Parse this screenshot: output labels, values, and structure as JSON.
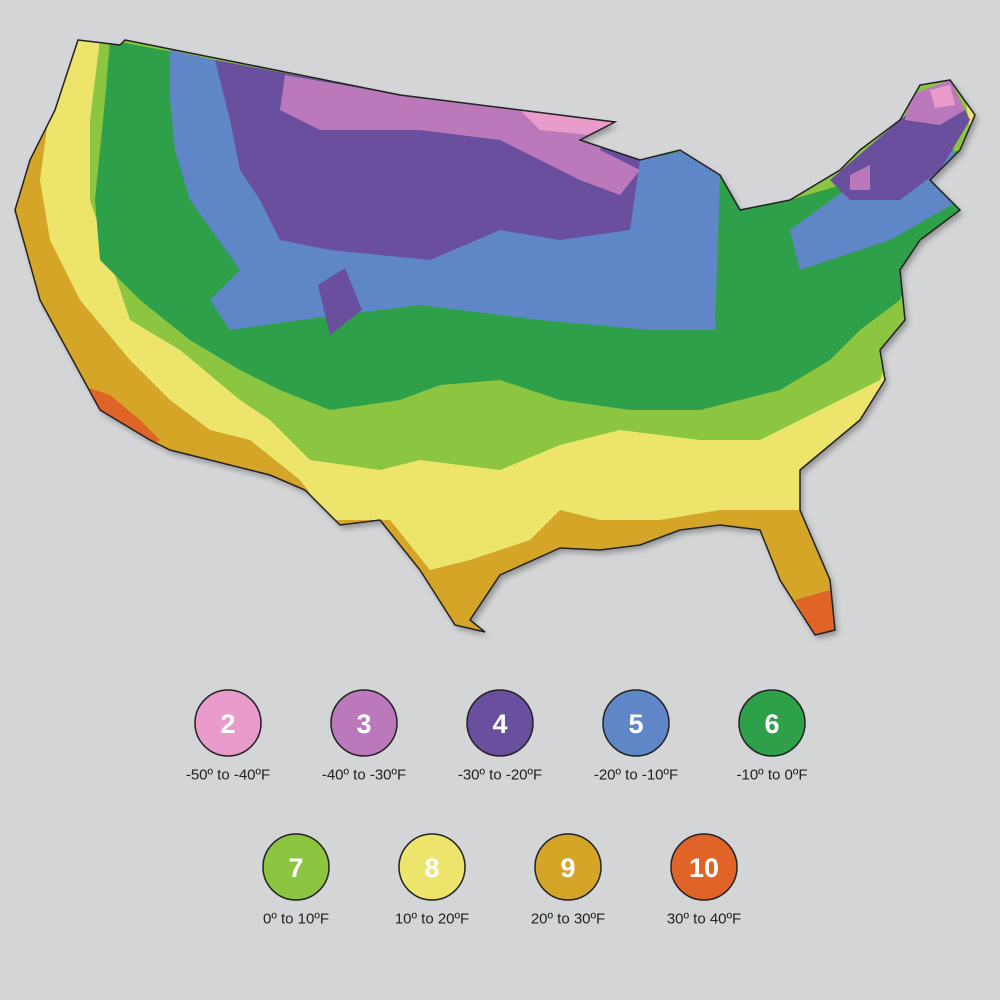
{
  "legend": {
    "items": [
      {
        "zone": "2",
        "range": "-50º to -40ºF",
        "color": "#e99ccc"
      },
      {
        "zone": "3",
        "range": "-40º to -30ºF",
        "color": "#bb79bc"
      },
      {
        "zone": "4",
        "range": "-30º to -20ºF",
        "color": "#6a4f9f"
      },
      {
        "zone": "5",
        "range": "-20º to -10ºF",
        "color": "#5f86c6"
      },
      {
        "zone": "6",
        "range": "-10º to 0ºF",
        "color": "#2ea04a"
      },
      {
        "zone": "7",
        "range": "0º to 10ºF",
        "color": "#8cc53f"
      },
      {
        "zone": "8",
        "range": "10º to 20ºF",
        "color": "#ece46b"
      },
      {
        "zone": "9",
        "range": "20º to 30ºF",
        "color": "#d4a526"
      },
      {
        "zone": "10",
        "range": "30º to 40ºF",
        "color": "#e06327"
      }
    ]
  }
}
